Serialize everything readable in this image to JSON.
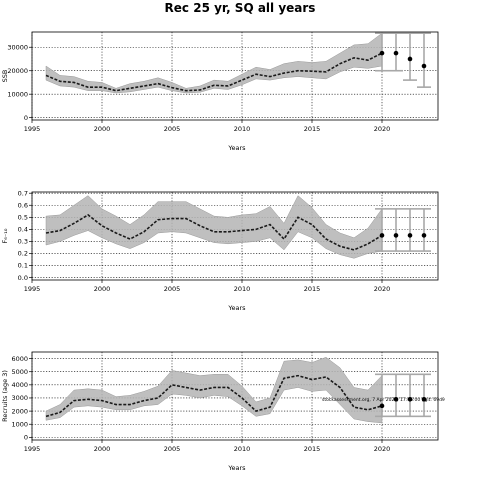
{
  "title": "Rec 25 yr, SQ all years",
  "chart_data": [
    {
      "type": "line",
      "xlabel": "Years",
      "ylabel": "SSB",
      "xlim": [
        1995,
        2024
      ],
      "ylim": [
        -1000,
        36500
      ],
      "xticks": [
        1995,
        2000,
        2005,
        2010,
        2015,
        2020
      ],
      "yticks": [
        0,
        10000,
        20000,
        30000
      ],
      "ytick_labels": [
        "0",
        "10000",
        "20000",
        "30000"
      ],
      "grid": true,
      "series": [
        {
          "x": [
            1996,
            1997,
            1998,
            1999,
            2000,
            2001,
            2002,
            2003,
            2004,
            2005,
            2006,
            2007,
            2008,
            2009,
            2010,
            2011,
            2012,
            2013,
            2014,
            2015,
            2016,
            2017,
            2018,
            2019,
            2020
          ],
          "mean": [
            18000,
            15500,
            15000,
            13000,
            13000,
            11500,
            12500,
            13500,
            14500,
            12800,
            11500,
            11800,
            13800,
            13500,
            16000,
            18500,
            17500,
            19000,
            20000,
            19800,
            19500,
            23000,
            25500,
            24500,
            27500
          ],
          "lower": [
            16000,
            13500,
            13000,
            11500,
            11500,
            10500,
            11000,
            12000,
            13000,
            11500,
            10500,
            10800,
            12500,
            12000,
            14000,
            16500,
            16000,
            17000,
            17500,
            17000,
            16500,
            19500,
            21500,
            21000,
            22000
          ],
          "upper": [
            22000,
            18000,
            17500,
            15500,
            15000,
            12500,
            14500,
            15500,
            17000,
            15000,
            12500,
            13500,
            16000,
            15500,
            18500,
            21500,
            20500,
            23000,
            24000,
            23500,
            24000,
            27500,
            31000,
            31500,
            36000
          ]
        }
      ],
      "projection": {
        "x": [
          2021,
          2022,
          2023
        ],
        "mean": [
          27500,
          25000,
          22000
        ],
        "lower": [
          20000,
          16000,
          13000
        ],
        "upper": [
          36000,
          36000,
          36000
        ]
      }
    },
    {
      "type": "line",
      "xlabel": "Years",
      "ylabel": "F₆₋₁₀",
      "xlim": [
        1995,
        2024
      ],
      "ylim": [
        -0.02,
        0.71
      ],
      "xticks": [
        1995,
        2000,
        2005,
        2010,
        2015,
        2020
      ],
      "yticks": [
        0.0,
        0.1,
        0.2,
        0.3,
        0.4,
        0.5,
        0.6,
        0.7
      ],
      "ytick_labels": [
        "0.0",
        "0.1",
        "0.2",
        "0.3",
        "0.4",
        "0.5",
        "0.6",
        "0.7"
      ],
      "grid": true,
      "series": [
        {
          "x": [
            1996,
            1997,
            1998,
            1999,
            2000,
            2001,
            2002,
            2003,
            2004,
            2005,
            2006,
            2007,
            2008,
            2009,
            2010,
            2011,
            2012,
            2013,
            2014,
            2015,
            2016,
            2017,
            2018,
            2019,
            2020
          ],
          "mean": [
            0.37,
            0.39,
            0.45,
            0.52,
            0.43,
            0.37,
            0.32,
            0.38,
            0.48,
            0.49,
            0.49,
            0.43,
            0.38,
            0.38,
            0.39,
            0.4,
            0.44,
            0.32,
            0.5,
            0.44,
            0.32,
            0.26,
            0.23,
            0.28,
            0.35
          ],
          "lower": [
            0.27,
            0.3,
            0.35,
            0.39,
            0.33,
            0.28,
            0.24,
            0.29,
            0.37,
            0.38,
            0.37,
            0.33,
            0.29,
            0.28,
            0.29,
            0.3,
            0.33,
            0.23,
            0.38,
            0.33,
            0.24,
            0.19,
            0.16,
            0.2,
            0.22
          ],
          "upper": [
            0.51,
            0.52,
            0.6,
            0.68,
            0.57,
            0.51,
            0.44,
            0.52,
            0.63,
            0.63,
            0.63,
            0.57,
            0.51,
            0.5,
            0.52,
            0.53,
            0.59,
            0.45,
            0.68,
            0.58,
            0.44,
            0.37,
            0.33,
            0.41,
            0.57
          ]
        }
      ],
      "projection": {
        "x": [
          2021,
          2022,
          2023
        ],
        "mean": [
          0.35,
          0.35,
          0.35
        ],
        "lower": [
          0.22,
          0.22,
          0.22
        ],
        "upper": [
          0.57,
          0.57,
          0.57
        ]
      }
    },
    {
      "type": "line",
      "xlabel": "Years",
      "ylabel": "Recruits (age 3)",
      "xlim": [
        1995,
        2024
      ],
      "ylim": [
        -200,
        6500
      ],
      "xticks": [
        1995,
        2000,
        2005,
        2010,
        2015,
        2020
      ],
      "yticks": [
        0,
        1000,
        2000,
        3000,
        4000,
        5000,
        6000
      ],
      "ytick_labels": [
        "0",
        "1000",
        "2000",
        "3000",
        "4000",
        "5000",
        "6000"
      ],
      "grid": true,
      "series": [
        {
          "x": [
            1996,
            1997,
            1998,
            1999,
            2000,
            2001,
            2002,
            2003,
            2004,
            2005,
            2006,
            2007,
            2008,
            2009,
            2010,
            2011,
            2012,
            2013,
            2014,
            2015,
            2016,
            2017,
            2018,
            2019,
            2020
          ],
          "mean": [
            1600,
            1900,
            2800,
            2900,
            2800,
            2500,
            2500,
            2800,
            3000,
            4000,
            3800,
            3600,
            3800,
            3800,
            3000,
            2000,
            2300,
            4500,
            4700,
            4400,
            4600,
            3800,
            2300,
            2100,
            2400
          ],
          "lower": [
            1300,
            1500,
            2300,
            2400,
            2300,
            2100,
            2100,
            2400,
            2500,
            3300,
            3200,
            3000,
            3200,
            3100,
            2400,
            1600,
            1800,
            3600,
            3800,
            3500,
            3600,
            2500,
            1400,
            1200,
            1100
          ],
          "upper": [
            2000,
            2500,
            3600,
            3700,
            3600,
            3100,
            3200,
            3500,
            3900,
            5100,
            4900,
            4700,
            4800,
            4800,
            3900,
            2700,
            3000,
            5800,
            5900,
            5700,
            6100,
            5300,
            3800,
            3600,
            4700
          ]
        }
      ],
      "projection": {
        "x": [
          2021,
          2022,
          2023
        ],
        "mean": [
          2900,
          2900,
          2900
        ],
        "lower": [
          1600,
          1600,
          1600
        ],
        "upper": [
          4800,
          4800,
          4800
        ]
      },
      "annotation": "stockassessment.org, 7 Apr 2021, 17:46:00 , git: 69d9"
    }
  ]
}
